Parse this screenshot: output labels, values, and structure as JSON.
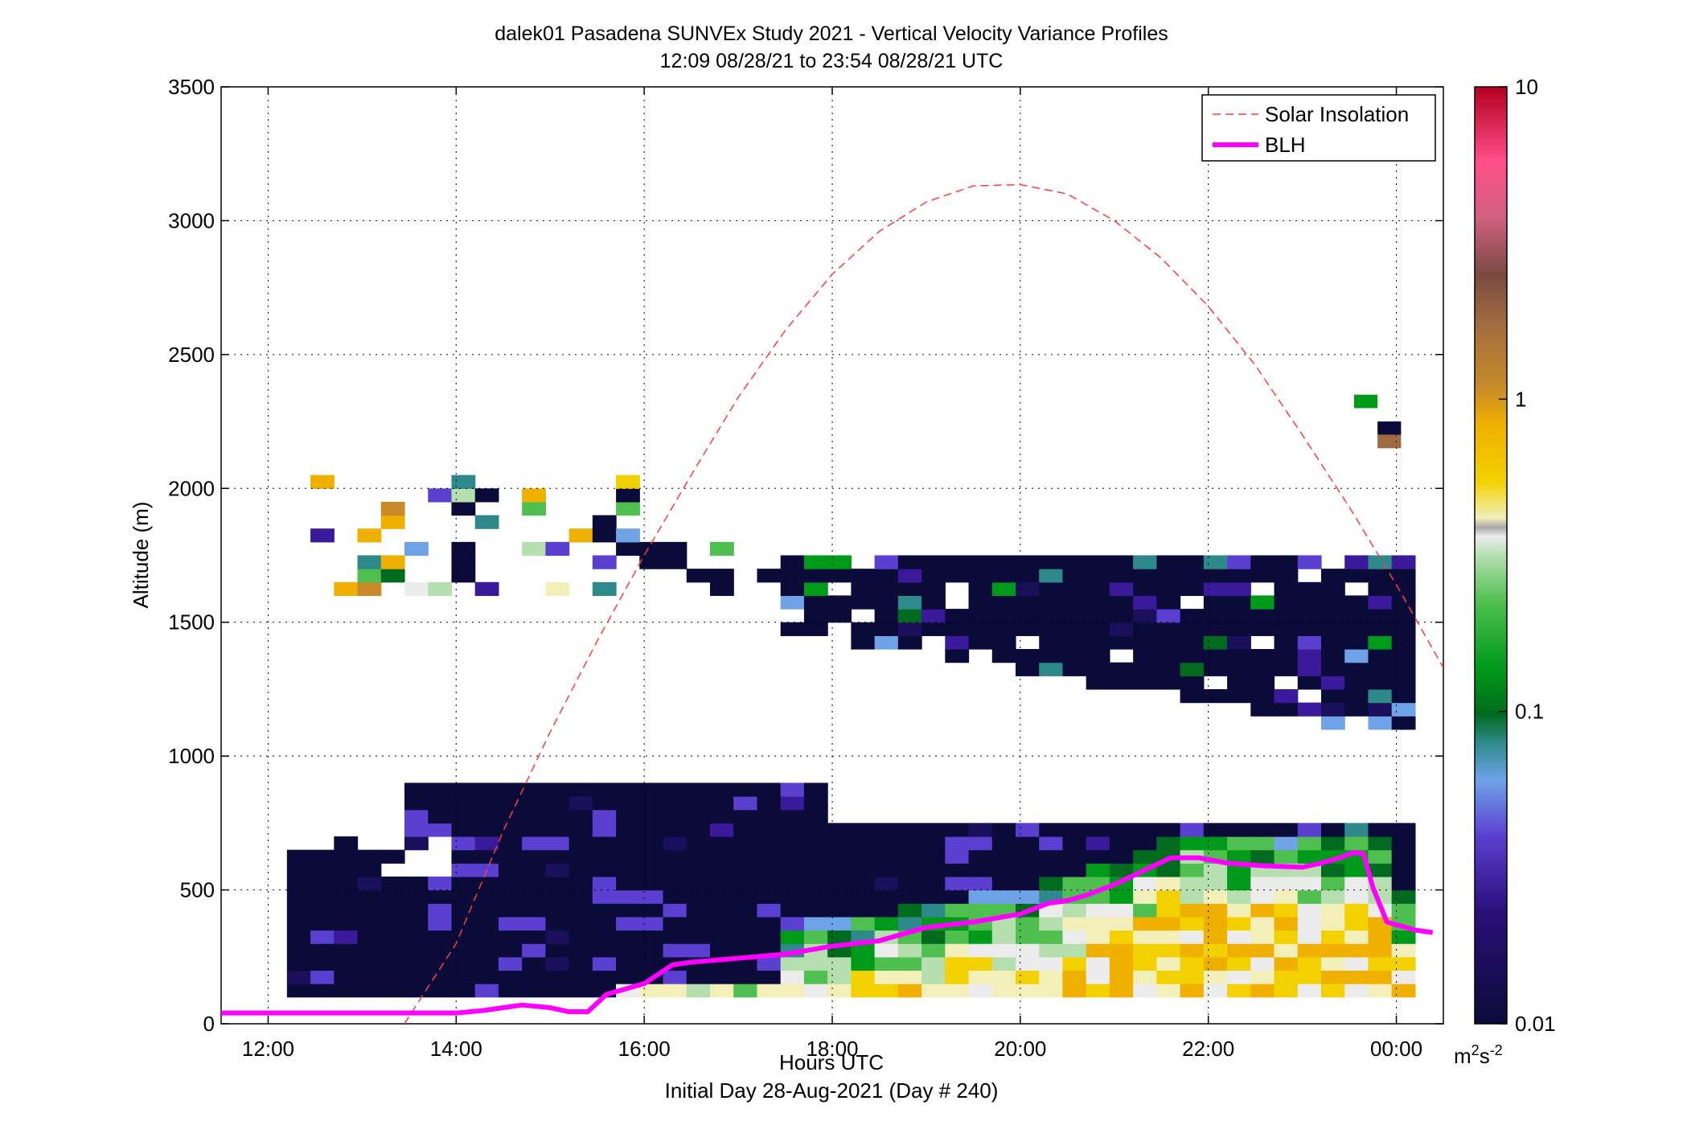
{
  "chart_data": {
    "type": "heatmap",
    "title_line1": "dalek01 Pasadena SUNVEx Study 2021 - Vertical Velocity Variance Profiles",
    "title_line2": "12:09 08/28/21 to 23:54 08/28/21  UTC",
    "xlabel": "Hours UTC",
    "xlabel_sub": "Initial Day 28-Aug-2021 (Day # 240)",
    "ylabel": "Altitude (m)",
    "x_range_hours": [
      11.5,
      24.5
    ],
    "ylim": [
      0,
      3500
    ],
    "x_ticks": [
      {
        "hour": 12,
        "label": "12:00"
      },
      {
        "hour": 14,
        "label": "14:00"
      },
      {
        "hour": 16,
        "label": "16:00"
      },
      {
        "hour": 18,
        "label": "18:00"
      },
      {
        "hour": 20,
        "label": "20:00"
      },
      {
        "hour": 22,
        "label": "22:00"
      },
      {
        "hour": 24,
        "label": "00:00"
      }
    ],
    "y_ticks": [
      0,
      500,
      1000,
      1500,
      2000,
      2500,
      3000,
      3500
    ],
    "grid": true,
    "colorbar": {
      "scale": "log",
      "min": 0.01,
      "max": 10,
      "tick_labels": [
        "0.01",
        "0.1",
        "1",
        "10"
      ],
      "unit_base": "m",
      "unit_sup1": "2",
      "unit_mid": "s",
      "unit_sup2": "-2"
    },
    "legend": {
      "placement": "top-right",
      "entries": [
        {
          "label": "Solar Insolation",
          "style": "dashed",
          "color": "#ff3b3b"
        },
        {
          "label": "BLH",
          "style": "solid",
          "color": "#ff00ff"
        }
      ]
    },
    "solar_insolation_curve": {
      "hours": [
        13.45,
        14.0,
        14.5,
        15.0,
        15.5,
        16.0,
        16.5,
        17.0,
        17.5,
        18.0,
        18.5,
        19.0,
        19.5,
        20.0,
        20.5,
        21.0,
        21.5,
        22.0,
        22.5,
        23.0,
        23.5,
        24.0,
        24.5
      ],
      "altitude_m": [
        0,
        300,
        720,
        1090,
        1430,
        1750,
        2050,
        2340,
        2590,
        2800,
        2960,
        3070,
        3130,
        3135,
        3100,
        3000,
        2860,
        2680,
        2460,
        2200,
        1930,
        1640,
        1330
      ]
    },
    "blh_series": {
      "hours": [
        11.5,
        12.0,
        13.0,
        14.0,
        14.3,
        14.7,
        15.0,
        15.2,
        15.4,
        15.6,
        15.8,
        16.0,
        16.3,
        16.5,
        17.0,
        17.5,
        18.0,
        18.5,
        19.0,
        19.5,
        20.0,
        20.3,
        20.5,
        20.7,
        21.0,
        21.3,
        21.6,
        21.9,
        22.2,
        22.6,
        23.0,
        23.2,
        23.4,
        23.55,
        23.65,
        23.75,
        23.9,
        24.0,
        24.2
      ],
      "altitude_m": [
        40,
        40,
        40,
        40,
        50,
        70,
        60,
        45,
        45,
        110,
        130,
        150,
        220,
        230,
        245,
        260,
        290,
        310,
        360,
        380,
        410,
        450,
        460,
        480,
        520,
        570,
        620,
        620,
        600,
        590,
        585,
        600,
        620,
        640,
        635,
        510,
        380,
        370,
        350
      ],
      "tail_dashed_hours": [
        24.2,
        24.5
      ],
      "tail_dashed_altitude_m": [
        350,
        335
      ]
    },
    "variance_field": {
      "x_start_hours": 12.2,
      "y_start_m": 100,
      "cell_hours": 0.25,
      "cell_m": 50,
      "note_values": "log10 of vertical velocity variance (m2 s-2); empty cells = no data",
      "cells": []
    }
  }
}
